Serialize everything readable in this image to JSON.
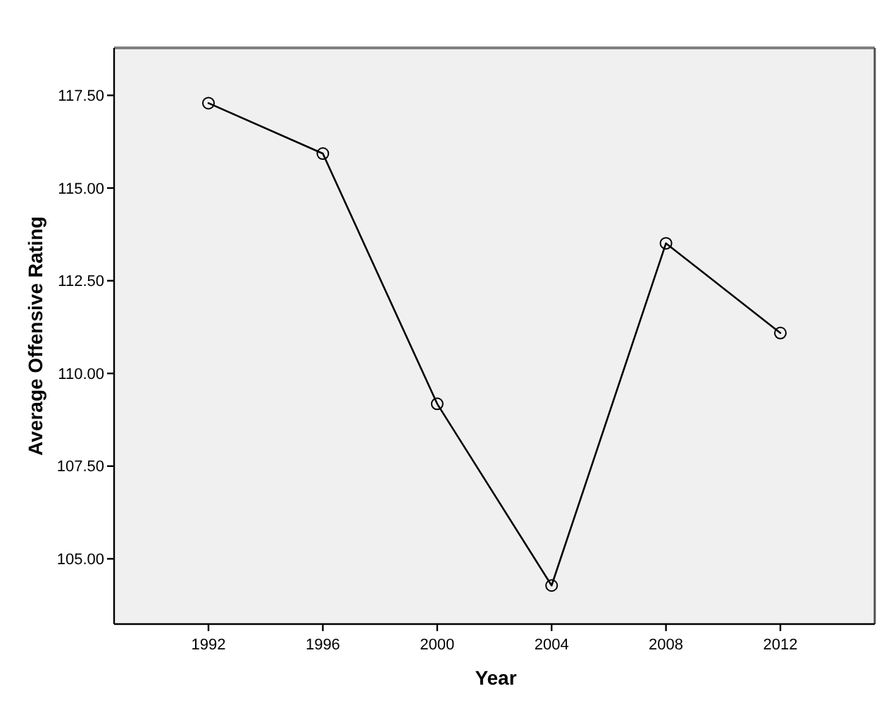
{
  "chart_data": {
    "type": "line",
    "xlabel": "Year",
    "ylabel": "Average Offensive Rating",
    "x": [
      1992,
      1996,
      2000,
      2004,
      2008,
      2012
    ],
    "values": [
      117.29,
      115.93,
      109.18,
      104.28,
      113.51,
      111.09
    ],
    "color": "#000000",
    "xlim": [
      1988.7,
      2015.3
    ],
    "xticks": [
      1992,
      1996,
      2000,
      2004,
      2008,
      2012
    ],
    "ylim": [
      103.24,
      118.78
    ],
    "yticks": [
      {
        "value": 105,
        "label": "105.00"
      },
      {
        "value": 107.5,
        "label": "107.50"
      },
      {
        "value": 110,
        "label": "110.00"
      },
      {
        "value": 112.5,
        "label": "112.50"
      },
      {
        "value": 115,
        "label": "115.00"
      },
      {
        "value": 117.5,
        "label": "117.50"
      }
    ],
    "marker": "circle",
    "line_style": "solid"
  }
}
